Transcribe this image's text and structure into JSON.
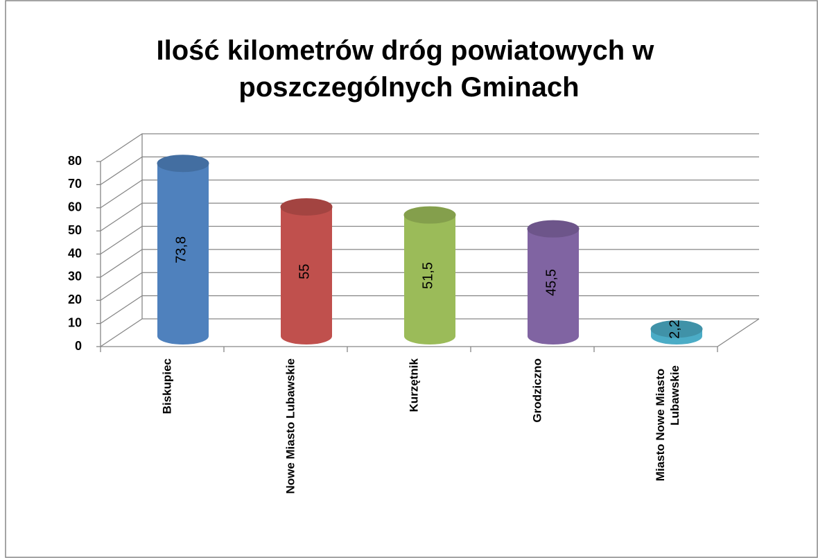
{
  "chart_data": {
    "type": "bar3d",
    "title": "Ilość kilometrów dróg powiatowych w poszczególnych Gminach",
    "categories": [
      "Biskupiec",
      "Nowe Miasto Lubawskie",
      "Kurzętnik",
      "Grodziczno",
      "Miasto Nowe Miasto Lubawskie"
    ],
    "values": [
      73.8,
      55,
      51.5,
      45.5,
      2.2
    ],
    "value_labels": [
      "73,8",
      "55",
      "51,5",
      "45,5",
      "2,2"
    ],
    "colors": [
      "#4f81bd",
      "#c0504d",
      "#9bbb59",
      "#8064a2",
      "#4bacc6"
    ],
    "ylim": [
      0,
      80
    ],
    "yticks": [
      0,
      10,
      20,
      30,
      40,
      50,
      60,
      70,
      80
    ],
    "grid": true
  }
}
